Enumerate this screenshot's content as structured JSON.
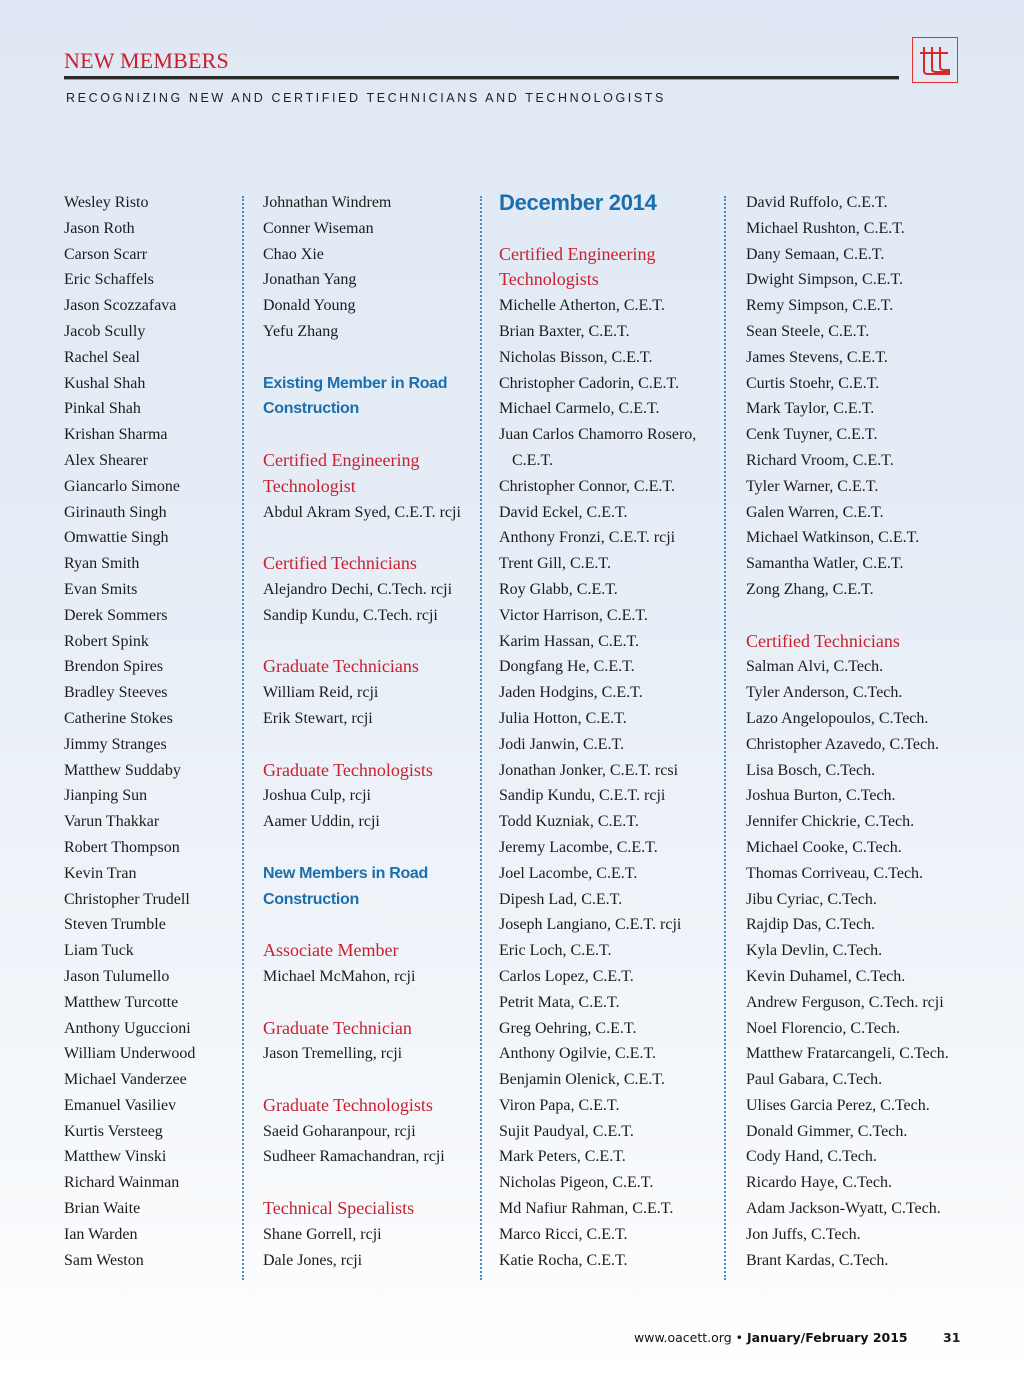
{
  "header": {
    "title": "NEW MEMBERS",
    "subtitle": "RECOGNIZING NEW AND CERTIFIED TECHNICIANS AND TECHNOLOGISTS",
    "logo_text": "ttt"
  },
  "colors": {
    "accent_red": "#c8202f",
    "accent_blue": "#1b6fae",
    "separator": "#4a8cc4"
  },
  "columns": [
    [
      {
        "t": "name",
        "v": "Wesley Risto"
      },
      {
        "t": "name",
        "v": "Jason Roth"
      },
      {
        "t": "name",
        "v": "Carson Scarr"
      },
      {
        "t": "name",
        "v": "Eric Schaffels"
      },
      {
        "t": "name",
        "v": "Jason Scozzafava"
      },
      {
        "t": "name",
        "v": "Jacob Scully"
      },
      {
        "t": "name",
        "v": "Rachel Seal"
      },
      {
        "t": "name",
        "v": "Kushal Shah"
      },
      {
        "t": "name",
        "v": "Pinkal Shah"
      },
      {
        "t": "name",
        "v": "Krishan Sharma"
      },
      {
        "t": "name",
        "v": "Alex Shearer"
      },
      {
        "t": "name",
        "v": "Giancarlo Simone"
      },
      {
        "t": "name",
        "v": "Girinauth Singh"
      },
      {
        "t": "name",
        "v": "Omwattie Singh"
      },
      {
        "t": "name",
        "v": "Ryan Smith"
      },
      {
        "t": "name",
        "v": "Evan Smits"
      },
      {
        "t": "name",
        "v": "Derek Sommers"
      },
      {
        "t": "name",
        "v": "Robert Spink"
      },
      {
        "t": "name",
        "v": "Brendon Spires"
      },
      {
        "t": "name",
        "v": "Bradley Steeves"
      },
      {
        "t": "name",
        "v": "Catherine Stokes"
      },
      {
        "t": "name",
        "v": "Jimmy Stranges"
      },
      {
        "t": "name",
        "v": "Matthew Suddaby"
      },
      {
        "t": "name",
        "v": "Jianping Sun"
      },
      {
        "t": "name",
        "v": "Varun Thakkar"
      },
      {
        "t": "name",
        "v": "Robert Thompson"
      },
      {
        "t": "name",
        "v": "Kevin Tran"
      },
      {
        "t": "name",
        "v": "Christopher Trudell"
      },
      {
        "t": "name",
        "v": "Steven Trumble"
      },
      {
        "t": "name",
        "v": "Liam Tuck"
      },
      {
        "t": "name",
        "v": "Jason Tulumello"
      },
      {
        "t": "name",
        "v": "Matthew Turcotte"
      },
      {
        "t": "name",
        "v": "Anthony Uguccioni"
      },
      {
        "t": "name",
        "v": "William Underwood"
      },
      {
        "t": "name",
        "v": "Michael Vanderzee"
      },
      {
        "t": "name",
        "v": "Emanuel Vasiliev"
      },
      {
        "t": "name",
        "v": "Kurtis Versteeg"
      },
      {
        "t": "name",
        "v": "Matthew Vinski"
      },
      {
        "t": "name",
        "v": "Richard Wainman"
      },
      {
        "t": "name",
        "v": "Brian Waite"
      },
      {
        "t": "name",
        "v": "Ian Warden"
      },
      {
        "t": "name",
        "v": "Sam Weston"
      }
    ],
    [
      {
        "t": "name",
        "v": "Johnathan Windrem"
      },
      {
        "t": "name",
        "v": "Conner Wiseman"
      },
      {
        "t": "name",
        "v": "Chao Xie"
      },
      {
        "t": "name",
        "v": "Jonathan Yang"
      },
      {
        "t": "name",
        "v": "Donald Young"
      },
      {
        "t": "name",
        "v": "Yefu Zhang"
      },
      {
        "t": "gap"
      },
      {
        "t": "blue",
        "v": "Existing Member in Road"
      },
      {
        "t": "blue",
        "v": "Construction"
      },
      {
        "t": "gap"
      },
      {
        "t": "red",
        "v": "Certified Engineering"
      },
      {
        "t": "red",
        "v": "Technologist"
      },
      {
        "t": "name",
        "v": "Abdul Akram Syed, C.E.T. rcji"
      },
      {
        "t": "gap"
      },
      {
        "t": "red",
        "v": "Certified Technicians"
      },
      {
        "t": "name",
        "v": "Alejandro Dechi, C.Tech. rcji"
      },
      {
        "t": "name",
        "v": "Sandip Kundu, C.Tech. rcji"
      },
      {
        "t": "gap"
      },
      {
        "t": "red",
        "v": "Graduate Technicians"
      },
      {
        "t": "name",
        "v": "William Reid,  rcji"
      },
      {
        "t": "name",
        "v": "Erik  Stewart,  rcji"
      },
      {
        "t": "gap"
      },
      {
        "t": "red",
        "v": "Graduate Technologists"
      },
      {
        "t": "name",
        "v": "Joshua Culp,  rcji"
      },
      {
        "t": "name",
        "v": "Aamer Uddin,  rcji"
      },
      {
        "t": "gap"
      },
      {
        "t": "blue",
        "v": "New Members in Road"
      },
      {
        "t": "blue",
        "v": "Construction"
      },
      {
        "t": "gap"
      },
      {
        "t": "red",
        "v": "Associate Member"
      },
      {
        "t": "name",
        "v": "Michael McMahon, rcji"
      },
      {
        "t": "gap"
      },
      {
        "t": "red",
        "v": "Graduate Technician"
      },
      {
        "t": "name",
        "v": "Jason Tremelling, rcji"
      },
      {
        "t": "gap"
      },
      {
        "t": "red",
        "v": "Graduate Technologists"
      },
      {
        "t": "name",
        "v": "Saeid Goharanpour, rcji"
      },
      {
        "t": "name",
        "v": "Sudheer Ramachandran, rcji"
      },
      {
        "t": "gap"
      },
      {
        "t": "red",
        "v": "Technical Specialists"
      },
      {
        "t": "name",
        "v": "Shane Gorrell, rcji"
      },
      {
        "t": "name",
        "v": "Dale Jones, rcji"
      }
    ],
    [
      {
        "t": "big",
        "v": "December 2014"
      },
      {
        "t": "gap"
      },
      {
        "t": "red",
        "v": "Certified Engineering"
      },
      {
        "t": "red",
        "v": "Technologists"
      },
      {
        "t": "name",
        "v": "Michelle Atherton, C.E.T."
      },
      {
        "t": "name",
        "v": "Brian Baxter, C.E.T."
      },
      {
        "t": "name",
        "v": "Nicholas Bisson, C.E.T."
      },
      {
        "t": "name",
        "v": "Christopher Cadorin, C.E.T."
      },
      {
        "t": "name",
        "v": "Michael Carmelo, C.E.T."
      },
      {
        "t": "name",
        "v": "Juan Carlos Chamorro Rosero,"
      },
      {
        "t": "indent",
        "v": "C.E.T."
      },
      {
        "t": "name",
        "v": "Christopher Connor, C.E.T."
      },
      {
        "t": "name",
        "v": "David Eckel, C.E.T."
      },
      {
        "t": "name",
        "v": "Anthony  Fronzi, C.E.T. rcji"
      },
      {
        "t": "name",
        "v": "Trent Gill, C.E.T."
      },
      {
        "t": "name",
        "v": "Roy Glabb, C.E.T."
      },
      {
        "t": "name",
        "v": "Victor Harrison, C.E.T."
      },
      {
        "t": "name",
        "v": "Karim Hassan, C.E.T."
      },
      {
        "t": "name",
        "v": "Dongfang He, C.E.T."
      },
      {
        "t": "name",
        "v": "Jaden Hodgins, C.E.T."
      },
      {
        "t": "name",
        "v": "Julia Hotton, C.E.T."
      },
      {
        "t": "name",
        "v": "Jodi Janwin, C.E.T."
      },
      {
        "t": "name",
        "v": "Jonathan Jonker, C.E.T. rcsi"
      },
      {
        "t": "name",
        "v": "Sandip Kundu, C.E.T. rcji"
      },
      {
        "t": "name",
        "v": "Todd Kuzniak, C.E.T."
      },
      {
        "t": "name",
        "v": "Jeremy Lacombe, C.E.T."
      },
      {
        "t": "name",
        "v": "Joel Lacombe, C.E.T."
      },
      {
        "t": "name",
        "v": "Dipesh Lad, C.E.T."
      },
      {
        "t": "name",
        "v": "Joseph Langiano, C.E.T. rcji"
      },
      {
        "t": "name",
        "v": "Eric Loch, C.E.T."
      },
      {
        "t": "name",
        "v": "Carlos Lopez, C.E.T."
      },
      {
        "t": "name",
        "v": "Petrit Mata, C.E.T."
      },
      {
        "t": "name",
        "v": "Greg Oehring, C.E.T."
      },
      {
        "t": "name",
        "v": "Anthony Ogilvie, C.E.T."
      },
      {
        "t": "name",
        "v": "Benjamin Olenick, C.E.T."
      },
      {
        "t": "name",
        "v": "Viron Papa, C.E.T."
      },
      {
        "t": "name",
        "v": "Sujit Paudyal, C.E.T."
      },
      {
        "t": "name",
        "v": "Mark Peters, C.E.T."
      },
      {
        "t": "name",
        "v": "Nicholas Pigeon, C.E.T."
      },
      {
        "t": "name",
        "v": "Md Nafiur Rahman, C.E.T."
      },
      {
        "t": "name",
        "v": "Marco Ricci, C.E.T."
      },
      {
        "t": "name",
        "v": "Katie Rocha, C.E.T."
      }
    ],
    [
      {
        "t": "name",
        "v": "David Ruffolo, C.E.T."
      },
      {
        "t": "name",
        "v": "Michael Rushton, C.E.T."
      },
      {
        "t": "name",
        "v": "Dany Semaan, C.E.T."
      },
      {
        "t": "name",
        "v": "Dwight Simpson, C.E.T."
      },
      {
        "t": "name",
        "v": "Remy Simpson, C.E.T."
      },
      {
        "t": "name",
        "v": "Sean Steele, C.E.T."
      },
      {
        "t": "name",
        "v": "James Stevens, C.E.T."
      },
      {
        "t": "name",
        "v": "Curtis Stoehr, C.E.T."
      },
      {
        "t": "name",
        "v": "Mark Taylor, C.E.T."
      },
      {
        "t": "name",
        "v": "Cenk Tuyner, C.E.T."
      },
      {
        "t": "name",
        "v": "Richard Vroom, C.E.T."
      },
      {
        "t": "name",
        "v": "Tyler Warner, C.E.T."
      },
      {
        "t": "name",
        "v": "Galen Warren, C.E.T."
      },
      {
        "t": "name",
        "v": "Michael Watkinson, C.E.T."
      },
      {
        "t": "name",
        "v": "Samantha Watler, C.E.T."
      },
      {
        "t": "name",
        "v": "Zong Zhang, C.E.T."
      },
      {
        "t": "gap"
      },
      {
        "t": "red",
        "v": "Certified Technicians"
      },
      {
        "t": "name",
        "v": "Salman Alvi, C.Tech."
      },
      {
        "t": "name",
        "v": "Tyler Anderson, C.Tech."
      },
      {
        "t": "name",
        "v": "Lazo Angelopoulos, C.Tech."
      },
      {
        "t": "name",
        "v": "Christopher Azavedo, C.Tech."
      },
      {
        "t": "name",
        "v": "Lisa Bosch, C.Tech."
      },
      {
        "t": "name",
        "v": "Joshua Burton, C.Tech."
      },
      {
        "t": "name",
        "v": "Jennifer Chickrie, C.Tech."
      },
      {
        "t": "name",
        "v": "Michael Cooke, C.Tech."
      },
      {
        "t": "name",
        "v": "Thomas Corriveau, C.Tech."
      },
      {
        "t": "name",
        "v": "Jibu Cyriac, C.Tech."
      },
      {
        "t": "name",
        "v": "Rajdip Das, C.Tech."
      },
      {
        "t": "name",
        "v": "Kyla  Devlin, C.Tech."
      },
      {
        "t": "name",
        "v": "Kevin Duhamel, C.Tech."
      },
      {
        "t": "name",
        "v": "Andrew Ferguson, C.Tech. rcji"
      },
      {
        "t": "name",
        "v": "Noel Florencio, C.Tech."
      },
      {
        "t": "name",
        "v": "Matthew Fratarcangeli, C.Tech."
      },
      {
        "t": "name",
        "v": "Paul Gabara, C.Tech."
      },
      {
        "t": "name",
        "v": "Ulises Garcia Perez, C.Tech."
      },
      {
        "t": "name",
        "v": "Donald Gimmer, C.Tech."
      },
      {
        "t": "name",
        "v": "Cody Hand, C.Tech."
      },
      {
        "t": "name",
        "v": "Ricardo Haye, C.Tech."
      },
      {
        "t": "name",
        "v": "Adam Jackson-Wyatt, C.Tech."
      },
      {
        "t": "name",
        "v": "Jon Juffs, C.Tech."
      },
      {
        "t": "name",
        "v": "Brant Kardas, C.Tech."
      }
    ]
  ],
  "footer": {
    "url": "www.oacett.org",
    "bullet": "•",
    "issue": "January/February 2015",
    "page": "31"
  }
}
